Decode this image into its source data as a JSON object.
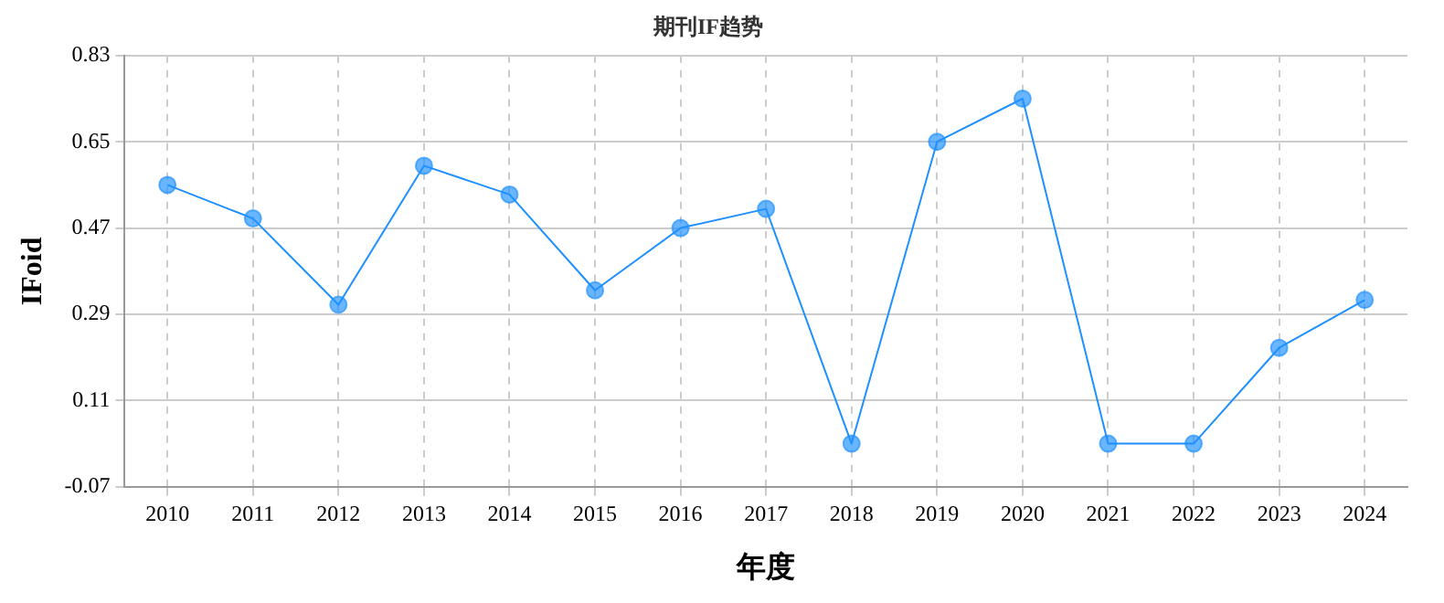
{
  "chart_data": {
    "type": "line",
    "title": "期刊IF趋势",
    "xlabel": "年度",
    "ylabel": "IFoid",
    "categories": [
      "2010",
      "2011",
      "2012",
      "2013",
      "2014",
      "2015",
      "2016",
      "2017",
      "2018",
      "2019",
      "2020",
      "2021",
      "2022",
      "2023",
      "2024"
    ],
    "series": [
      {
        "color": "#1e90ff",
        "values": [
          0.56,
          0.49,
          0.31,
          0.6,
          0.54,
          0.34,
          0.47,
          0.51,
          0.02,
          0.65,
          0.74,
          0.02,
          0.02,
          0.22,
          0.32
        ]
      }
    ],
    "ylim": [
      -0.07,
      0.83
    ],
    "yticks": [
      -0.07,
      0.11,
      0.29,
      0.47,
      0.65,
      0.83
    ],
    "grid": true,
    "legend": false,
    "marker": "circle",
    "line_style": "solid"
  }
}
